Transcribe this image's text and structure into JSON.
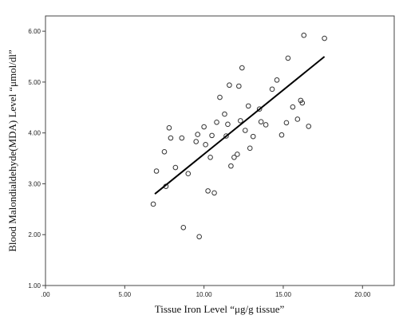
{
  "chart_data": {
    "type": "scatter",
    "title": "",
    "xlabel": "Tissue  Iron Level “μg/g tissue”",
    "ylabel": "Blood Malondialdehyde(MDA) Level “μmol/dl”",
    "xlim": [
      0,
      22
    ],
    "ylim": [
      1.0,
      6.3
    ],
    "x_ticks": [
      0,
      5,
      10,
      15,
      20
    ],
    "x_tick_labels": [
      ".00",
      "5.00",
      "10.00",
      "15.00",
      "20.00"
    ],
    "y_ticks": [
      1,
      2,
      3,
      4,
      5,
      6
    ],
    "y_tick_labels": [
      "1.00",
      "2.00",
      "3.00",
      "4.00",
      "5.00",
      "6.00"
    ],
    "grid": false,
    "marker": "open-circle",
    "point_color": "#333333",
    "line_color": "#000000",
    "series": [
      {
        "points": [
          [
            6.8,
            2.6
          ],
          [
            7.0,
            3.25
          ],
          [
            7.5,
            3.63
          ],
          [
            7.6,
            2.95
          ],
          [
            7.8,
            4.1
          ],
          [
            7.9,
            3.9
          ],
          [
            8.2,
            3.32
          ],
          [
            8.6,
            3.9
          ],
          [
            8.7,
            2.14
          ],
          [
            9.0,
            3.2
          ],
          [
            9.5,
            3.83
          ],
          [
            9.6,
            3.97
          ],
          [
            9.7,
            1.96
          ],
          [
            10.0,
            4.12
          ],
          [
            10.1,
            3.77
          ],
          [
            10.25,
            2.86
          ],
          [
            10.4,
            3.52
          ],
          [
            10.5,
            3.95
          ],
          [
            10.65,
            2.82
          ],
          [
            10.8,
            4.21
          ],
          [
            11.0,
            4.7
          ],
          [
            11.3,
            4.37
          ],
          [
            11.4,
            3.94
          ],
          [
            11.5,
            4.17
          ],
          [
            11.6,
            4.94
          ],
          [
            11.7,
            3.35
          ],
          [
            11.9,
            3.52
          ],
          [
            12.1,
            3.58
          ],
          [
            12.2,
            4.92
          ],
          [
            12.3,
            4.24
          ],
          [
            12.4,
            5.28
          ],
          [
            12.6,
            4.05
          ],
          [
            12.8,
            4.53
          ],
          [
            12.9,
            3.7
          ],
          [
            13.1,
            3.93
          ],
          [
            13.5,
            4.47
          ],
          [
            13.6,
            4.22
          ],
          [
            13.9,
            4.16
          ],
          [
            14.3,
            4.86
          ],
          [
            14.6,
            5.04
          ],
          [
            14.9,
            3.96
          ],
          [
            15.2,
            4.2
          ],
          [
            15.3,
            5.47
          ],
          [
            15.6,
            4.51
          ],
          [
            15.9,
            4.27
          ],
          [
            16.1,
            4.64
          ],
          [
            16.2,
            4.59
          ],
          [
            16.3,
            5.92
          ],
          [
            16.6,
            4.13
          ],
          [
            17.6,
            5.86
          ]
        ]
      }
    ],
    "fit_line": {
      "x": [
        6.9,
        17.6
      ],
      "y": [
        2.8,
        5.5
      ]
    }
  }
}
